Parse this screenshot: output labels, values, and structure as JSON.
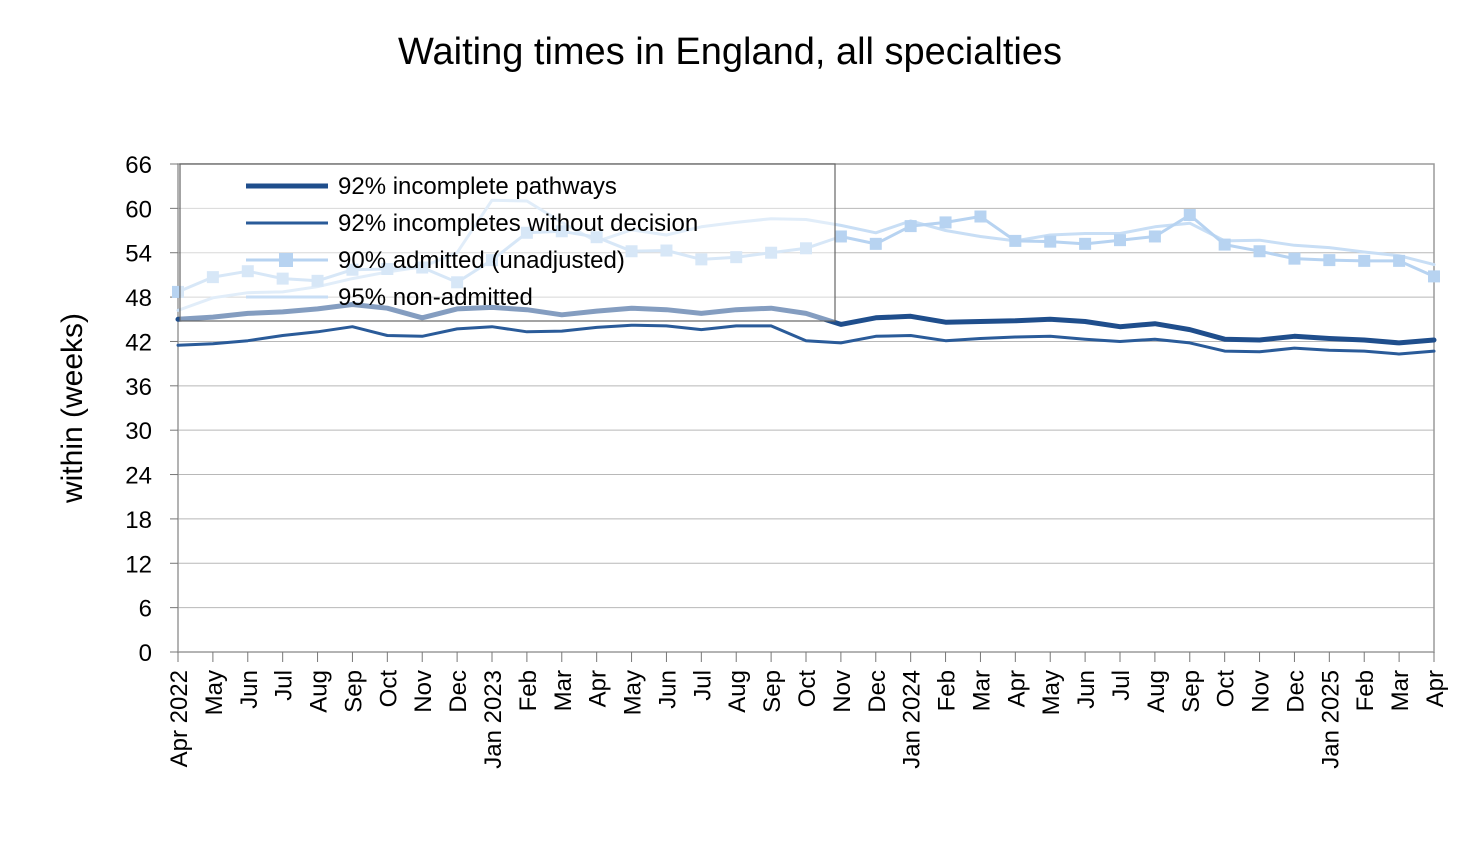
{
  "chart_data": {
    "type": "line",
    "title": "Waiting times in England, all specialties",
    "ylabel": "within (weeks)",
    "xlabel": "",
    "ylim": [
      0,
      66
    ],
    "yticks": [
      0,
      6,
      12,
      18,
      24,
      30,
      36,
      42,
      48,
      54,
      60,
      66
    ],
    "grid": "horizontal",
    "legend_position": "top-left",
    "categories": [
      "Apr 2022",
      "May",
      "Jun",
      "Jul",
      "Aug",
      "Sep",
      "Oct",
      "Nov",
      "Dec",
      "Jan 2023",
      "Feb",
      "Mar",
      "Apr",
      "May",
      "Jun",
      "Jul",
      "Aug",
      "Sep",
      "Oct",
      "Nov",
      "Dec",
      "Jan 2024",
      "Feb",
      "Mar",
      "Apr",
      "May",
      "Jun",
      "Jul",
      "Aug",
      "Sep",
      "Oct",
      "Nov",
      "Dec",
      "Jan 2025",
      "Feb",
      "Mar",
      "Apr"
    ],
    "series": [
      {
        "name": "92% incomplete pathways",
        "color": "#1f4e8c",
        "style": "thick",
        "values": [
          45.0,
          45.3,
          45.8,
          46.0,
          46.4,
          47.0,
          46.5,
          45.2,
          46.4,
          46.6,
          46.3,
          45.6,
          46.1,
          46.5,
          46.3,
          45.8,
          46.3,
          46.5,
          45.8,
          44.3,
          45.2,
          45.4,
          44.6,
          44.7,
          44.8,
          45.0,
          44.7,
          44.0,
          44.4,
          43.6,
          42.3,
          42.2,
          42.7,
          42.4,
          42.2,
          41.8,
          42.2
        ]
      },
      {
        "name": "92% incompletes without decision",
        "color": "#2a5b99",
        "style": "thin",
        "values": [
          41.5,
          41.7,
          42.1,
          42.8,
          43.3,
          44.0,
          42.8,
          42.7,
          43.7,
          44.0,
          43.3,
          43.4,
          43.9,
          44.2,
          44.1,
          43.6,
          44.1,
          44.1,
          42.1,
          41.8,
          42.7,
          42.8,
          42.1,
          42.4,
          42.6,
          42.7,
          42.3,
          42.0,
          42.3,
          41.8,
          40.7,
          40.6,
          41.1,
          40.8,
          40.7,
          40.3,
          40.7
        ]
      },
      {
        "name": "90% admitted (unadjusted)",
        "color": "#b7d3f1",
        "style": "markers",
        "values": [
          48.7,
          50.7,
          51.5,
          50.5,
          50.2,
          51.7,
          51.8,
          52.0,
          50.0,
          53.0,
          56.7,
          56.9,
          56.1,
          54.2,
          54.3,
          53.1,
          53.4,
          54.0,
          54.6,
          56.2,
          55.2,
          57.6,
          58.1,
          58.9,
          55.6,
          55.5,
          55.2,
          55.7,
          56.2,
          59.1,
          55.1,
          54.2,
          53.2,
          53.0,
          52.9,
          52.9,
          50.8
        ]
      },
      {
        "name": "95% non-admitted",
        "color": "#c8def5",
        "style": "line",
        "values": [
          46.2,
          47.9,
          48.6,
          48.7,
          49.4,
          50.5,
          51.4,
          52.1,
          54.0,
          61.1,
          61.0,
          58.1,
          55.5,
          57.1,
          56.4,
          57.5,
          58.1,
          58.6,
          58.5,
          57.7,
          56.7,
          58.3,
          57.0,
          56.2,
          55.6,
          56.4,
          56.6,
          56.6,
          57.5,
          58.0,
          55.6,
          55.7,
          55.0,
          54.7,
          54.1,
          53.6,
          52.4
        ]
      }
    ]
  }
}
